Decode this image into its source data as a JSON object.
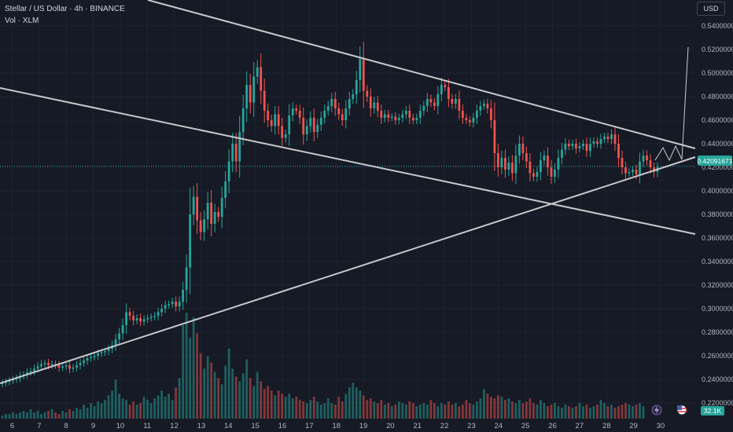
{
  "header": {
    "symbol_line": "Stellar / US Dollar · 4h · BINANCE",
    "volume_line": "Vol · XLM"
  },
  "currency_button": "USD",
  "colors": {
    "background": "#161a25",
    "up": "#26a69a",
    "down": "#ef5350",
    "trendline": "#c8c9cc",
    "grid": "#1f2331"
  },
  "chart_data": {
    "type": "candlestick",
    "y_axis_labels": [
      "0.54000000",
      "0.52000000",
      "0.50000000",
      "0.48000000",
      "0.46000000",
      "0.44000000",
      "0.42000000",
      "0.40000000",
      "0.38000000",
      "0.36000000",
      "0.34000000",
      "0.32000000",
      "0.30000000",
      "0.28000000",
      "0.26000000",
      "0.24000000",
      "0.22000000"
    ],
    "ylim": [
      0.2131,
      0.5495
    ],
    "x_tick_labels": [
      "6",
      "7",
      "8",
      "9",
      "10",
      "11",
      "12",
      "13",
      "14",
      "15",
      "16",
      "17",
      "18",
      "19",
      "20",
      "21",
      "22",
      "23",
      "24",
      "25",
      "26",
      "27",
      "28",
      "29",
      "30"
    ],
    "last_price": "0.42091671",
    "volume_label": "32.1K",
    "closes": [
      0.237,
      0.238,
      0.239,
      0.24,
      0.241,
      0.243,
      0.244,
      0.246,
      0.247,
      0.249,
      0.251,
      0.253,
      0.254,
      0.252,
      0.253,
      0.252,
      0.25,
      0.251,
      0.252,
      0.249,
      0.25,
      0.252,
      0.254,
      0.256,
      0.258,
      0.259,
      0.26,
      0.262,
      0.263,
      0.264,
      0.266,
      0.269,
      0.274,
      0.279,
      0.286,
      0.297,
      0.294,
      0.29,
      0.292,
      0.289,
      0.291,
      0.292,
      0.293,
      0.294,
      0.297,
      0.3,
      0.303,
      0.304,
      0.306,
      0.302,
      0.306,
      0.316,
      0.335,
      0.38,
      0.395,
      0.375,
      0.365,
      0.376,
      0.39,
      0.372,
      0.382,
      0.378,
      0.394,
      0.408,
      0.425,
      0.44,
      0.425,
      0.45,
      0.47,
      0.49,
      0.475,
      0.497,
      0.505,
      0.485,
      0.468,
      0.46,
      0.455,
      0.465,
      0.455,
      0.445,
      0.448,
      0.464,
      0.47,
      0.468,
      0.462,
      0.448,
      0.455,
      0.462,
      0.45,
      0.456,
      0.462,
      0.468,
      0.472,
      0.478,
      0.47,
      0.465,
      0.46,
      0.47,
      0.478,
      0.482,
      0.494,
      0.512,
      0.485,
      0.48,
      0.47,
      0.475,
      0.468,
      0.462,
      0.465,
      0.462,
      0.463,
      0.46,
      0.462,
      0.465,
      0.468,
      0.462,
      0.46,
      0.462,
      0.468,
      0.472,
      0.478,
      0.475,
      0.472,
      0.482,
      0.49,
      0.488,
      0.478,
      0.474,
      0.478,
      0.468,
      0.462,
      0.46,
      0.458,
      0.462,
      0.468,
      0.472,
      0.474,
      0.47,
      0.46,
      0.432,
      0.42,
      0.428,
      0.418,
      0.424,
      0.415,
      0.43,
      0.44,
      0.432,
      0.425,
      0.415,
      0.412,
      0.416,
      0.426,
      0.43,
      0.42,
      0.412,
      0.418,
      0.428,
      0.435,
      0.44,
      0.438,
      0.44,
      0.436,
      0.438,
      0.44,
      0.434,
      0.44,
      0.442,
      0.44,
      0.444,
      0.446,
      0.444,
      0.448,
      0.44,
      0.428,
      0.42,
      0.415,
      0.416,
      0.418,
      0.414,
      0.425,
      0.43,
      0.426,
      0.42,
      0.416,
      0.42
    ],
    "volumes": [
      0.2,
      0.3,
      0.3,
      0.4,
      0.3,
      0.4,
      0.5,
      0.4,
      0.6,
      0.4,
      0.5,
      0.3,
      0.4,
      0.5,
      0.6,
      0.4,
      0.3,
      0.5,
      0.4,
      0.6,
      0.5,
      0.7,
      0.6,
      0.9,
      0.7,
      1.0,
      0.8,
      1.1,
      1.0,
      1.2,
      1.5,
      1.8,
      2.5,
      1.6,
      1.3,
      1.2,
      0.9,
      1.1,
      0.9,
      1.0,
      1.4,
      1.2,
      1.0,
      1.3,
      1.5,
      1.8,
      1.4,
      1.6,
      1.2,
      2.0,
      2.6,
      6.0,
      6.8,
      5.2,
      6.5,
      5.5,
      4.2,
      3.2,
      4.0,
      3.6,
      3.0,
      2.6,
      2.2,
      3.4,
      4.5,
      3.2,
      2.7,
      2.4,
      2.9,
      3.8,
      2.6,
      2.1,
      3.0,
      2.4,
      1.9,
      2.1,
      1.8,
      1.5,
      1.8,
      1.6,
      1.4,
      1.6,
      1.3,
      1.4,
      1.2,
      1.1,
      1.0,
      1.2,
      1.4,
      1.1,
      0.9,
      1.0,
      1.3,
      1.0,
      0.9,
      1.4,
      1.1,
      1.6,
      2.0,
      2.3,
      2.0,
      1.8,
      1.5,
      1.2,
      1.3,
      1.1,
      1.0,
      1.2,
      0.9,
      1.0,
      0.8,
      0.9,
      1.1,
      1.0,
      0.9,
      1.1,
      1.0,
      0.8,
      0.9,
      1.0,
      0.9,
      1.2,
      1.0,
      0.8,
      1.0,
      0.9,
      1.1,
      0.9,
      1.0,
      0.8,
      0.9,
      1.2,
      1.0,
      0.9,
      1.1,
      1.3,
      1.9,
      1.6,
      1.4,
      1.3,
      1.5,
      1.4,
      1.2,
      1.3,
      1.1,
      1.0,
      1.2,
      1.0,
      1.1,
      1.3,
      1.0,
      0.9,
      1.2,
      1.0,
      0.8,
      0.9,
      1.0,
      0.8,
      0.7,
      0.9,
      0.8,
      0.7,
      0.8,
      1.0,
      0.8,
      0.9,
      0.7,
      0.8,
      0.9,
      1.2,
      1.0,
      0.8,
      0.9,
      0.7,
      0.8,
      0.9,
      1.0,
      0.9,
      0.8,
      0.9,
      1.0,
      0.8
    ]
  }
}
